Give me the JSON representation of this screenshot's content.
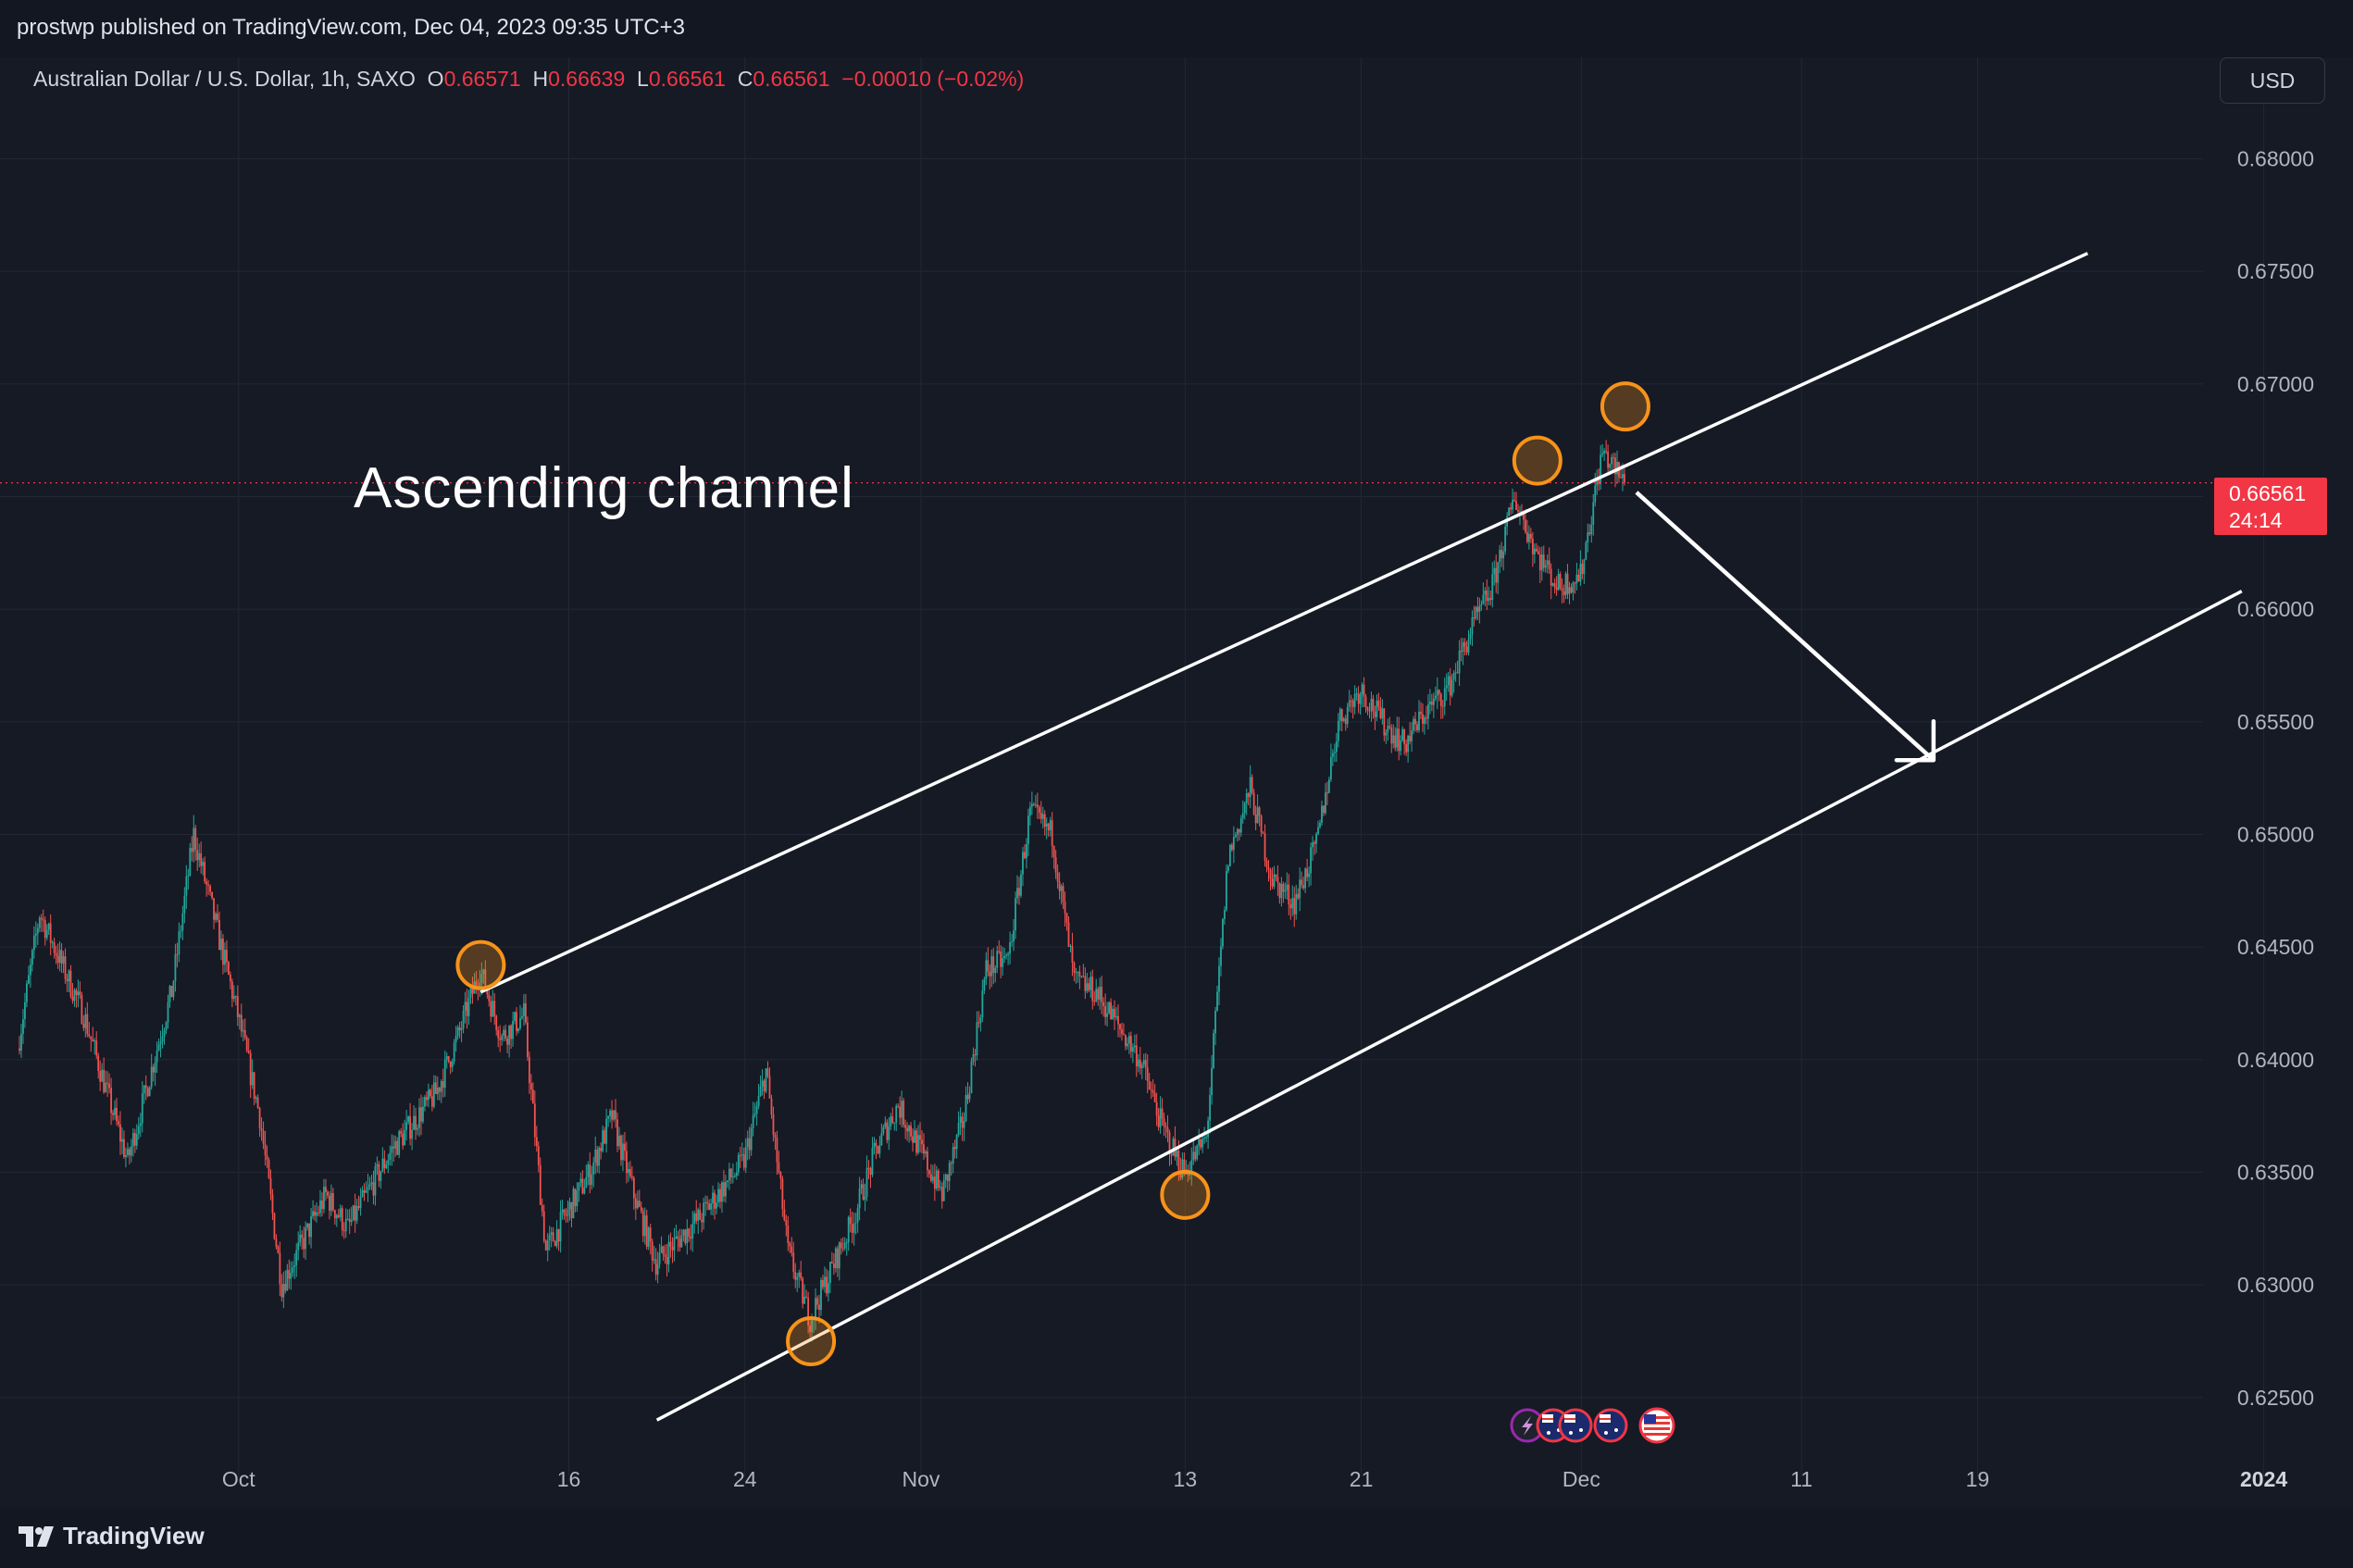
{
  "header": {
    "published_text": "prostwp published on TradingView.com, Dec 04, 2023 09:35 UTC+3"
  },
  "symbol": {
    "name": "Australian Dollar / U.S. Dollar, 1h, SAXO",
    "o_label": "O",
    "o_value": "0.66571",
    "h_label": "H",
    "h_value": "0.66639",
    "l_label": "L",
    "l_value": "0.66561",
    "c_label": "C",
    "c_value": "0.66561",
    "change": "−0.00010 (−0.02%)"
  },
  "currency_button": "USD",
  "last_price": {
    "value": "0.66561",
    "countdown": "24:14"
  },
  "footer": {
    "brand": "TradingView"
  },
  "colors": {
    "up": "#26a69a",
    "down": "#ef5350",
    "background": "#161a25",
    "annotation": "#ffffff",
    "pivot": "#f7931a"
  },
  "chart_data": {
    "type": "candlestick",
    "title": "",
    "timeframe": "1h",
    "y_axis": {
      "ticks": [
        "0.68000",
        "0.67500",
        "0.67000",
        "0.66500",
        "0.66000",
        "0.65500",
        "0.65000",
        "0.64500",
        "0.64000",
        "0.63500",
        "0.63000",
        "0.62500"
      ],
      "range": [
        0.6215,
        0.6845
      ]
    },
    "x_axis": {
      "ticks": [
        "Oct",
        "16",
        "24",
        "Nov",
        "13",
        "21",
        "Dec",
        "11",
        "19",
        "2024"
      ]
    },
    "series": [
      {
        "name": "AUDUSD",
        "waypoints": [
          [
            "2023-09-21",
            0.6405
          ],
          [
            "2023-09-22",
            0.6465
          ],
          [
            "2023-09-24",
            0.642
          ],
          [
            "2023-09-26",
            0.6355
          ],
          [
            "2023-09-28",
            0.643
          ],
          [
            "2023-09-29",
            0.65
          ],
          [
            "2023-10-01",
            0.642
          ],
          [
            "2023-10-02",
            0.6375
          ],
          [
            "2023-10-03",
            0.63
          ],
          [
            "2023-10-05",
            0.634
          ],
          [
            "2023-10-06",
            0.6325
          ],
          [
            "2023-10-08",
            0.636
          ],
          [
            "2023-10-10",
            0.6385
          ],
          [
            "2023-10-11",
            0.641
          ],
          [
            "2023-10-12",
            0.644
          ],
          [
            "2023-10-13",
            0.641
          ],
          [
            "2023-10-14",
            0.642
          ],
          [
            "2023-10-15",
            0.6315
          ],
          [
            "2023-10-17",
            0.635
          ],
          [
            "2023-10-18",
            0.6375
          ],
          [
            "2023-10-19",
            0.634
          ],
          [
            "2023-10-20",
            0.631
          ],
          [
            "2023-10-22",
            0.633
          ],
          [
            "2023-10-24",
            0.6355
          ],
          [
            "2023-10-25",
            0.6395
          ],
          [
            "2023-10-26",
            0.6315
          ],
          [
            "2023-10-27",
            0.6285
          ],
          [
            "2023-10-29",
            0.633
          ],
          [
            "2023-10-30",
            0.636
          ],
          [
            "2023-10-31",
            0.638
          ],
          [
            "2023-11-02",
            0.634
          ],
          [
            "2023-11-03",
            0.6375
          ],
          [
            "2023-11-04",
            0.644
          ],
          [
            "2023-11-05",
            0.6445
          ],
          [
            "2023-11-06",
            0.651
          ],
          [
            "2023-11-07",
            0.65
          ],
          [
            "2023-11-08",
            0.6435
          ],
          [
            "2023-11-09",
            0.643
          ],
          [
            "2023-11-10",
            0.6415
          ],
          [
            "2023-11-11",
            0.64
          ],
          [
            "2023-11-12",
            0.637
          ],
          [
            "2023-11-13",
            0.635
          ],
          [
            "2023-11-14",
            0.6365
          ],
          [
            "2023-11-15",
            0.649
          ],
          [
            "2023-11-16",
            0.652
          ],
          [
            "2023-11-17",
            0.648
          ],
          [
            "2023-11-18",
            0.647
          ],
          [
            "2023-11-19",
            0.6495
          ],
          [
            "2023-11-20",
            0.655
          ],
          [
            "2023-11-21",
            0.6565
          ],
          [
            "2023-11-22",
            0.655
          ],
          [
            "2023-11-23",
            0.654
          ],
          [
            "2023-11-24",
            0.6555
          ],
          [
            "2023-11-25",
            0.6565
          ],
          [
            "2023-11-26",
            0.659
          ],
          [
            "2023-11-27",
            0.661
          ],
          [
            "2023-11-28",
            0.665
          ],
          [
            "2023-11-29",
            0.6625
          ],
          [
            "2023-11-30",
            0.661
          ],
          [
            "2023-12-01",
            0.6615
          ],
          [
            "2023-12-02",
            0.667
          ],
          [
            "2023-12-03",
            0.6656
          ]
        ]
      }
    ],
    "last_value": 0.66561,
    "annotations": [
      {
        "type": "text",
        "text": "Ascending channel"
      },
      {
        "type": "trendline",
        "role": "channel-top",
        "from": [
          "2023-10-12",
          0.643
        ],
        "to": [
          "2023-12-24",
          0.6758
        ]
      },
      {
        "type": "trendline",
        "role": "channel-bottom",
        "from": [
          "2023-10-20",
          0.624
        ],
        "to": [
          "2023-12-31",
          0.6608
        ]
      },
      {
        "type": "arrow",
        "from": [
          "2023-12-03",
          0.6656
        ],
        "to": [
          "2023-12-17",
          0.6533
        ]
      },
      {
        "type": "circle",
        "at": [
          "2023-10-12",
          0.6442
        ]
      },
      {
        "type": "circle",
        "at": [
          "2023-10-27",
          0.6275
        ]
      },
      {
        "type": "circle",
        "at": [
          "2023-11-13",
          0.634
        ]
      },
      {
        "type": "circle",
        "at": [
          "2023-11-29",
          0.6666
        ]
      },
      {
        "type": "circle",
        "at": [
          "2023-12-03",
          0.669
        ]
      }
    ]
  }
}
